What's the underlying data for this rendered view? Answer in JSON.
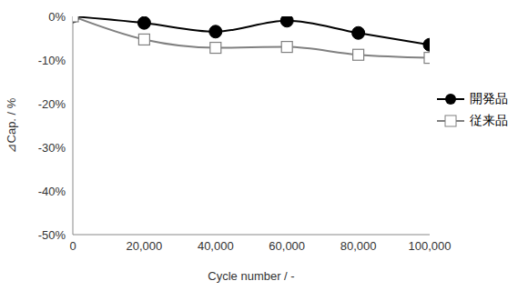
{
  "chart_data": {
    "type": "line",
    "x_label": "Cycle number / -",
    "y_label": "⊿Cap. / %",
    "x": [
      0,
      20000,
      40000,
      60000,
      80000,
      100000
    ],
    "series": [
      {
        "name": "開発品",
        "color": "#000000",
        "marker": "circle",
        "line_style": "solid",
        "values": [
          0,
          -1.5,
          -3.5,
          -1.0,
          -3.8,
          -6.5
        ]
      },
      {
        "name": "従来品",
        "color": "#808080",
        "marker": "square",
        "line_style": "solid",
        "values": [
          0,
          -5.3,
          -7.2,
          -7.0,
          -8.8,
          -9.5
        ]
      }
    ],
    "xlim": [
      0,
      100000
    ],
    "xticks": [
      0,
      {
        "value": 20000,
        "label": "20,000"
      },
      {
        "value": 40000,
        "label": "40,000"
      },
      {
        "value": 60000,
        "label": "60,000"
      },
      {
        "value": 80000,
        "label": "80,000"
      },
      {
        "value": 100000,
        "label": "100,000"
      }
    ],
    "ylim": [
      -50,
      0
    ],
    "yticks": [
      {
        "value": 0,
        "label": "0%"
      },
      {
        "value": -10,
        "label": "-10%"
      },
      {
        "value": -20,
        "label": "-20%"
      },
      {
        "value": -30,
        "label": "-30%"
      },
      {
        "value": -40,
        "label": "-40%"
      },
      {
        "value": -50,
        "label": "-50%"
      }
    ],
    "grid": false,
    "legend": "right"
  }
}
